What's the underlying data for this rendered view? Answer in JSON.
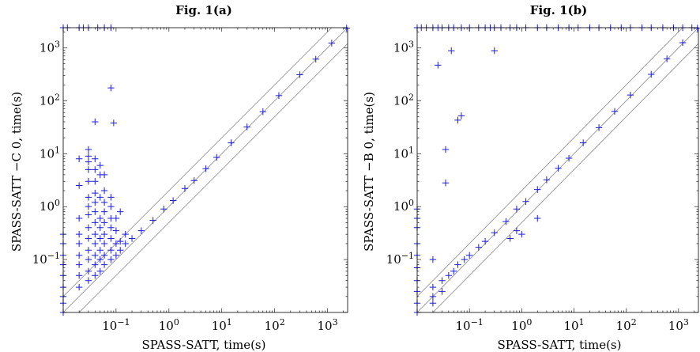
{
  "chart_data": [
    {
      "type": "scatter",
      "title": "Fig. 1(a)",
      "xlabel": "SPASS-SATT, time(s)",
      "ylabel": "SPASS-SATT −C 0, time(s)",
      "xscale": "log",
      "yscale": "log",
      "xlim": [
        0.01,
        2400
      ],
      "ylim": [
        0.01,
        2400
      ],
      "x_ticks": [
        "10^-1",
        "10^0",
        "10^1",
        "10^2",
        "10^3"
      ],
      "y_ticks": [
        "10^-1",
        "10^0",
        "10^1",
        "10^2",
        "10^3"
      ],
      "reference_lines": [
        "y = x / 2",
        "y = x",
        "y = 2x"
      ],
      "grid": false,
      "marker": "+",
      "color": "#1f1fd6",
      "points": [
        [
          0.01,
          2400
        ],
        [
          0.012,
          2400
        ],
        [
          0.02,
          2400
        ],
        [
          0.024,
          2400
        ],
        [
          0.03,
          2400
        ],
        [
          0.045,
          2400
        ],
        [
          0.06,
          2400
        ],
        [
          0.08,
          2400
        ],
        [
          0.01,
          0.01
        ],
        [
          0.01,
          0.015
        ],
        [
          0.01,
          0.02
        ],
        [
          0.01,
          0.03
        ],
        [
          0.01,
          0.05
        ],
        [
          0.01,
          0.08
        ],
        [
          0.01,
          0.12
        ],
        [
          0.01,
          0.2
        ],
        [
          0.01,
          0.3
        ],
        [
          0.02,
          0.03
        ],
        [
          0.02,
          0.05
        ],
        [
          0.02,
          0.08
        ],
        [
          0.02,
          0.12
        ],
        [
          0.02,
          0.2
        ],
        [
          0.02,
          0.3
        ],
        [
          0.02,
          0.6
        ],
        [
          0.02,
          2.5
        ],
        [
          0.02,
          8
        ],
        [
          0.03,
          0.04
        ],
        [
          0.03,
          0.06
        ],
        [
          0.03,
          0.1
        ],
        [
          0.03,
          0.15
        ],
        [
          0.03,
          0.25
        ],
        [
          0.03,
          0.4
        ],
        [
          0.03,
          0.7
        ],
        [
          0.03,
          1.0
        ],
        [
          0.03,
          1.5
        ],
        [
          0.03,
          3
        ],
        [
          0.03,
          5
        ],
        [
          0.03,
          7
        ],
        [
          0.03,
          9
        ],
        [
          0.03,
          12
        ],
        [
          0.04,
          0.05
        ],
        [
          0.04,
          0.08
        ],
        [
          0.04,
          0.12
        ],
        [
          0.04,
          0.2
        ],
        [
          0.04,
          0.3
        ],
        [
          0.04,
          0.5
        ],
        [
          0.04,
          0.8
        ],
        [
          0.04,
          1.2
        ],
        [
          0.04,
          1.8
        ],
        [
          0.04,
          3
        ],
        [
          0.04,
          5
        ],
        [
          0.04,
          8
        ],
        [
          0.04,
          40
        ],
        [
          0.05,
          0.06
        ],
        [
          0.05,
          0.1
        ],
        [
          0.05,
          0.15
        ],
        [
          0.05,
          0.25
        ],
        [
          0.05,
          0.4
        ],
        [
          0.05,
          0.6
        ],
        [
          0.05,
          1.5
        ],
        [
          0.05,
          4
        ],
        [
          0.05,
          6
        ],
        [
          0.06,
          0.08
        ],
        [
          0.06,
          0.12
        ],
        [
          0.06,
          0.2
        ],
        [
          0.06,
          0.3
        ],
        [
          0.06,
          0.5
        ],
        [
          0.06,
          0.8
        ],
        [
          0.06,
          1.2
        ],
        [
          0.06,
          2
        ],
        [
          0.06,
          4
        ],
        [
          0.08,
          0.1
        ],
        [
          0.08,
          0.15
        ],
        [
          0.08,
          0.25
        ],
        [
          0.08,
          0.4
        ],
        [
          0.08,
          0.6
        ],
        [
          0.08,
          1.0
        ],
        [
          0.08,
          1.5
        ],
        [
          0.08,
          175
        ],
        [
          0.09,
          38
        ],
        [
          0.1,
          0.12
        ],
        [
          0.1,
          0.2
        ],
        [
          0.1,
          0.35
        ],
        [
          0.1,
          0.6
        ],
        [
          0.12,
          0.15
        ],
        [
          0.12,
          0.22
        ],
        [
          0.12,
          0.8
        ],
        [
          0.15,
          0.2
        ],
        [
          0.15,
          0.3
        ],
        [
          0.2,
          0.25
        ],
        [
          0.3,
          0.35
        ],
        [
          0.5,
          0.55
        ],
        [
          0.8,
          0.9
        ],
        [
          1.2,
          1.3
        ],
        [
          2,
          2.2
        ],
        [
          3,
          3.1
        ],
        [
          5,
          5.2
        ],
        [
          8,
          8.5
        ],
        [
          15,
          16
        ],
        [
          30,
          32
        ],
        [
          60,
          62
        ],
        [
          120,
          125
        ],
        [
          300,
          310
        ],
        [
          600,
          610
        ],
        [
          1200,
          1230
        ],
        [
          2300,
          2350
        ]
      ]
    },
    {
      "type": "scatter",
      "title": "Fig. 1(b)",
      "xlabel": "SPASS-SATT, time(s)",
      "ylabel": "SPASS-SATT −B 0, time(s)",
      "xscale": "log",
      "yscale": "log",
      "xlim": [
        0.01,
        2400
      ],
      "ylim": [
        0.01,
        2400
      ],
      "x_ticks": [
        "10^-1",
        "10^0",
        "10^1",
        "10^2",
        "10^3"
      ],
      "y_ticks": [
        "10^-1",
        "10^0",
        "10^1",
        "10^2",
        "10^3"
      ],
      "reference_lines": [
        "y = x / 2",
        "y = x",
        "y = 2x"
      ],
      "grid": false,
      "marker": "+",
      "color": "#1f1fd6",
      "points": [
        [
          0.01,
          2400
        ],
        [
          0.012,
          2400
        ],
        [
          0.015,
          2400
        ],
        [
          0.02,
          2400
        ],
        [
          0.025,
          2400
        ],
        [
          0.03,
          2400
        ],
        [
          0.04,
          2400
        ],
        [
          0.05,
          2400
        ],
        [
          0.07,
          2400
        ],
        [
          0.1,
          2400
        ],
        [
          0.15,
          2400
        ],
        [
          0.2,
          2400
        ],
        [
          0.25,
          2400
        ],
        [
          0.3,
          2400
        ],
        [
          0.4,
          2400
        ],
        [
          0.6,
          2400
        ],
        [
          0.8,
          2400
        ],
        [
          1.2,
          2400
        ],
        [
          2,
          2400
        ],
        [
          3,
          2400
        ],
        [
          5,
          2400
        ],
        [
          8,
          2400
        ],
        [
          12,
          2400
        ],
        [
          20,
          2400
        ],
        [
          30,
          2400
        ],
        [
          50,
          2400
        ],
        [
          80,
          2400
        ],
        [
          120,
          2400
        ],
        [
          200,
          2400
        ],
        [
          300,
          2400
        ],
        [
          500,
          2400
        ],
        [
          800,
          2400
        ],
        [
          1200,
          2400
        ],
        [
          1800,
          2400
        ],
        [
          0.01,
          0.01
        ],
        [
          0.01,
          0.015
        ],
        [
          0.01,
          0.025
        ],
        [
          0.01,
          0.04
        ],
        [
          0.01,
          0.07
        ],
        [
          0.01,
          0.12
        ],
        [
          0.01,
          0.2
        ],
        [
          0.01,
          0.4
        ],
        [
          0.01,
          0.6
        ],
        [
          0.01,
          0.9
        ],
        [
          0.02,
          0.02
        ],
        [
          0.02,
          0.03
        ],
        [
          0.02,
          0.1
        ],
        [
          0.025,
          470
        ],
        [
          0.035,
          12
        ],
        [
          0.035,
          2.8
        ],
        [
          0.045,
          880
        ],
        [
          0.06,
          43
        ],
        [
          0.07,
          52
        ],
        [
          0.3,
          880
        ],
        [
          0.02,
          0.015
        ],
        [
          0.03,
          0.025
        ],
        [
          0.03,
          0.04
        ],
        [
          0.04,
          0.05
        ],
        [
          0.05,
          0.06
        ],
        [
          0.06,
          0.08
        ],
        [
          0.08,
          0.1
        ],
        [
          0.1,
          0.12
        ],
        [
          0.15,
          0.17
        ],
        [
          0.2,
          0.22
        ],
        [
          0.3,
          0.32
        ],
        [
          0.5,
          0.52
        ],
        [
          0.8,
          0.9
        ],
        [
          1.2,
          1.25
        ],
        [
          2,
          2.1
        ],
        [
          3,
          3.2
        ],
        [
          5,
          5.3
        ],
        [
          8,
          8.2
        ],
        [
          15,
          16
        ],
        [
          30,
          31
        ],
        [
          60,
          63
        ],
        [
          120,
          128
        ],
        [
          300,
          315
        ],
        [
          600,
          620
        ],
        [
          1200,
          1250
        ],
        [
          2300,
          2350
        ],
        [
          0.8,
          0.35
        ],
        [
          1,
          0.3
        ],
        [
          0.6,
          0.25
        ],
        [
          2,
          0.6
        ]
      ]
    }
  ]
}
